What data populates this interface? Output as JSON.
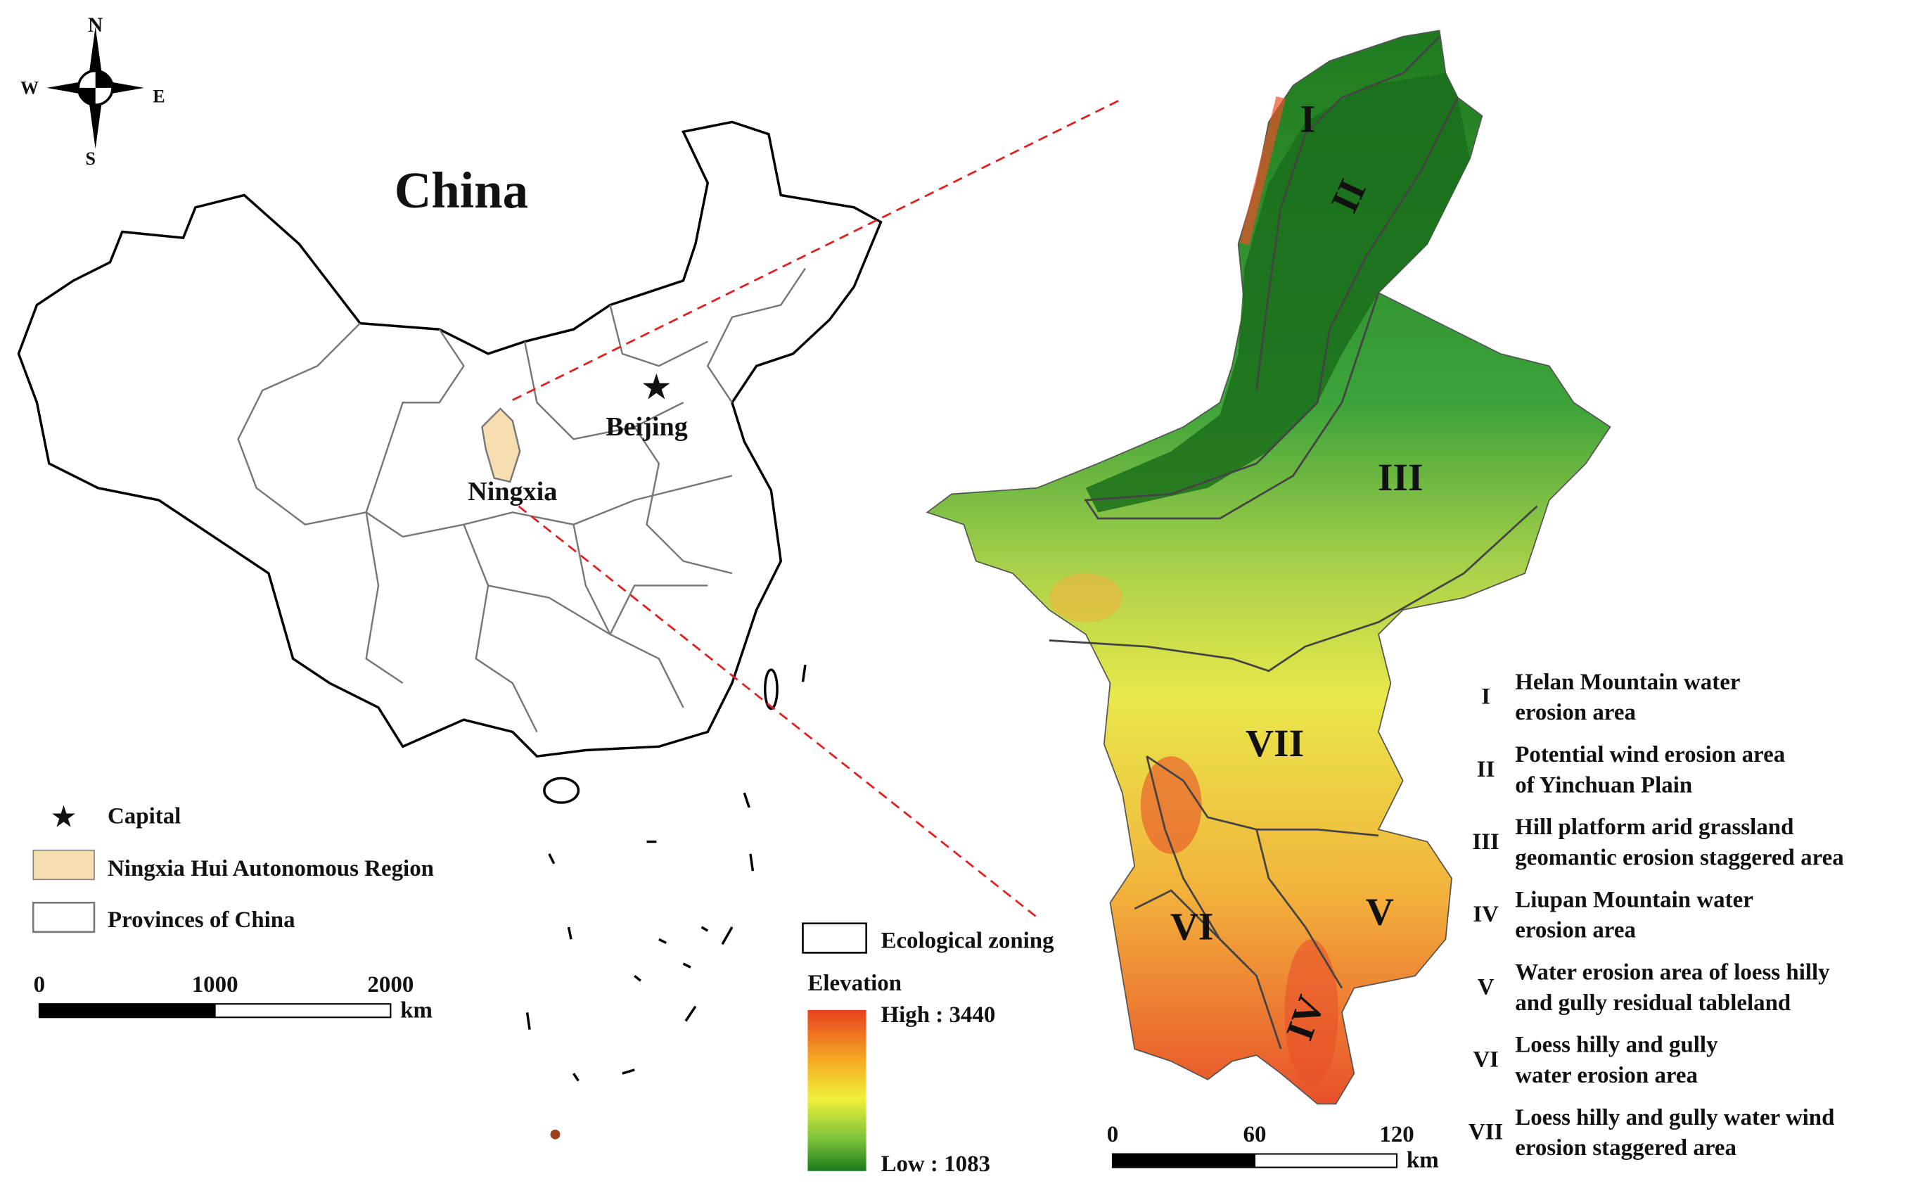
{
  "compass": {
    "north": "N",
    "south": "S",
    "west": "W",
    "east": "E"
  },
  "overview": {
    "title": "China",
    "capital_label": "Beijing",
    "region_label": "Ningxia",
    "legend": {
      "capital": "Capital",
      "region": "Ningxia Hui Autonomous Region",
      "provinces": "Provinces of China"
    },
    "scale_bar": {
      "ticks": [
        0,
        1000,
        2000
      ],
      "unit": "km"
    }
  },
  "detail": {
    "zones": [
      "I",
      "II",
      "III",
      "IV",
      "V",
      "VI",
      "VII"
    ],
    "zoning_legend": "Ecological  zoning",
    "elevation": {
      "title": "Elevation",
      "high": "High : 3440",
      "low": "Low : 1083"
    },
    "scale_bar": {
      "ticks": [
        0,
        60,
        120
      ],
      "unit": "km"
    }
  },
  "zone_legend": [
    {
      "numeral": "I",
      "text": [
        "Helan Mountain water",
        " erosion area"
      ]
    },
    {
      "numeral": "II",
      "text": [
        "Potential wind erosion area",
        "of Yinchuan Plain"
      ]
    },
    {
      "numeral": "III",
      "text": [
        "Hill platform arid grassland",
        "geomantic erosion staggered area"
      ]
    },
    {
      "numeral": "IV",
      "text": [
        "Liupan Mountain water",
        "erosion area"
      ]
    },
    {
      "numeral": "V",
      "text": [
        "Water erosion area of loess hilly",
        "and gully residual tableland"
      ]
    },
    {
      "numeral": "VI",
      "text": [
        "Loess hilly and gully",
        "water erosion area"
      ]
    },
    {
      "numeral": "VII",
      "text": [
        "Loess hilly and gully water wind",
        "erosion staggered area"
      ]
    }
  ]
}
